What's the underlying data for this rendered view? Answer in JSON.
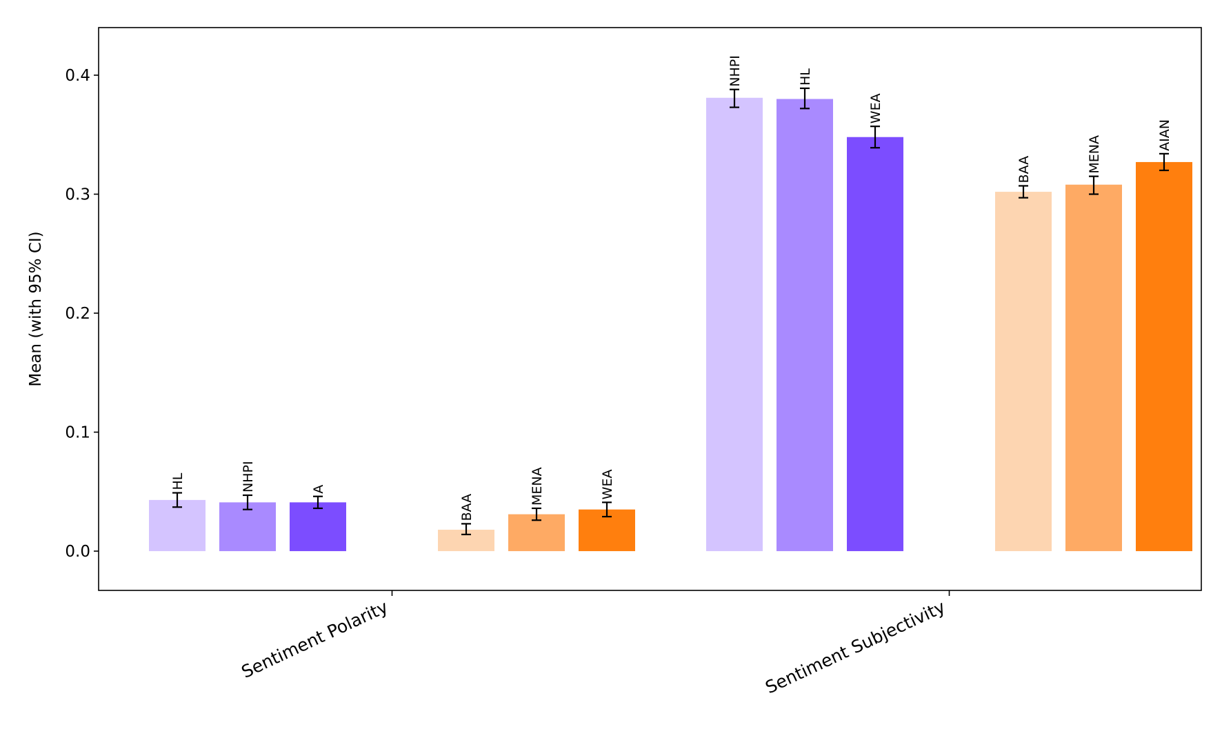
{
  "chart_data": {
    "type": "bar",
    "ylabel": "Mean (with 95% CI)",
    "ylim": [
      -0.033,
      0.44
    ],
    "yticks": [
      "0.0",
      "0.1",
      "0.2",
      "0.3",
      "0.4"
    ],
    "grid": false,
    "legend": "none",
    "categories": [
      "Sentiment Polarity",
      "Sentiment Subjectivity"
    ],
    "groups": [
      {
        "category": "Sentiment Polarity",
        "bars": [
          {
            "label": "HL",
            "value": 0.043,
            "ci_low": 0.037,
            "ci_high": 0.049,
            "color": "#d4c4ff"
          },
          {
            "label": "NHPI",
            "value": 0.041,
            "ci_low": 0.035,
            "ci_high": 0.047,
            "color": "#a98aff"
          },
          {
            "label": "A",
            "value": 0.041,
            "ci_low": 0.036,
            "ci_high": 0.046,
            "color": "#7c4dff"
          },
          {
            "label": "BAA",
            "value": 0.018,
            "ci_low": 0.014,
            "ci_high": 0.023,
            "color": "#fdd5b1"
          },
          {
            "label": "MENA",
            "value": 0.031,
            "ci_low": 0.026,
            "ci_high": 0.036,
            "color": "#feaa64"
          },
          {
            "label": "WEA",
            "value": 0.035,
            "ci_low": 0.029,
            "ci_high": 0.041,
            "color": "#ff7f0e"
          }
        ]
      },
      {
        "category": "Sentiment Subjectivity",
        "bars": [
          {
            "label": "NHPI",
            "value": 0.381,
            "ci_low": 0.373,
            "ci_high": 0.388,
            "color": "#d4c4ff"
          },
          {
            "label": "HL",
            "value": 0.38,
            "ci_low": 0.372,
            "ci_high": 0.389,
            "color": "#a98aff"
          },
          {
            "label": "WEA",
            "value": 0.348,
            "ci_low": 0.339,
            "ci_high": 0.357,
            "color": "#7c4dff"
          },
          {
            "label": "BAA",
            "value": 0.302,
            "ci_low": 0.297,
            "ci_high": 0.307,
            "color": "#fdd5b1"
          },
          {
            "label": "MENA",
            "value": 0.308,
            "ci_low": 0.3,
            "ci_high": 0.315,
            "color": "#feaa64"
          },
          {
            "label": "AIAN",
            "value": 0.327,
            "ci_low": 0.32,
            "ci_high": 0.334,
            "color": "#ff7f0e"
          }
        ]
      }
    ]
  }
}
